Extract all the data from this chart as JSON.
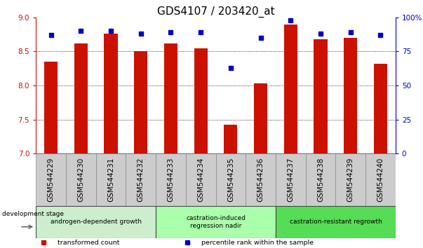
{
  "title": "GDS4107 / 203420_at",
  "categories": [
    "GSM544229",
    "GSM544230",
    "GSM544231",
    "GSM544232",
    "GSM544233",
    "GSM544234",
    "GSM544235",
    "GSM544236",
    "GSM544237",
    "GSM544238",
    "GSM544239",
    "GSM544240"
  ],
  "bar_values": [
    8.35,
    8.62,
    8.76,
    8.5,
    8.62,
    8.55,
    7.43,
    8.03,
    8.9,
    8.68,
    8.7,
    8.32
  ],
  "percentile_values": [
    87,
    90,
    90,
    88,
    89,
    89,
    63,
    85,
    98,
    88,
    89,
    87
  ],
  "bar_color": "#cc1100",
  "percentile_color": "#0000cc",
  "ylim_left": [
    7.0,
    9.0
  ],
  "ylim_right": [
    0,
    100
  ],
  "yticks_left": [
    7.0,
    7.5,
    8.0,
    8.5,
    9.0
  ],
  "yticks_right": [
    0,
    25,
    50,
    75,
    100
  ],
  "ytick_labels_right": [
    "0",
    "25",
    "50",
    "75",
    "100%"
  ],
  "grid_values": [
    7.5,
    8.0,
    8.5
  ],
  "groups": [
    {
      "label": "androgen-dependent growth",
      "start": 0,
      "end": 3,
      "color": "#cceecc"
    },
    {
      "label": "castration-induced\nregression nadir",
      "start": 4,
      "end": 7,
      "color": "#aaffaa"
    },
    {
      "label": "castration-resistant regrowth",
      "start": 8,
      "end": 11,
      "color": "#55dd55"
    }
  ],
  "stage_label": "development stage",
  "legend_items": [
    {
      "label": "transformed count",
      "color": "#cc1100"
    },
    {
      "label": "percentile rank within the sample",
      "color": "#0000cc"
    }
  ],
  "xtick_bg_color": "#cccccc",
  "title_fontsize": 11,
  "tick_fontsize": 7.5,
  "bar_width": 0.45
}
